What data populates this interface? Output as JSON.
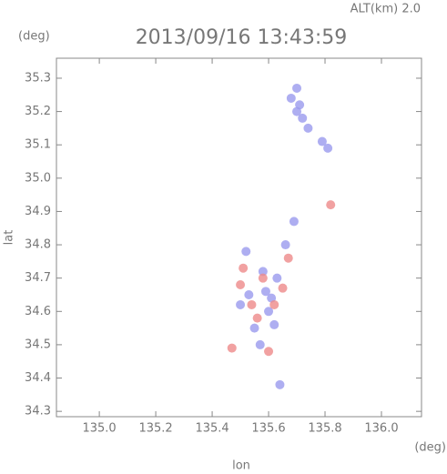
{
  "chart_data": {
    "type": "scatter",
    "title": "2013/09/16 13:43:59",
    "subtitle": "ALT(km) 2.0",
    "y_unit": "(deg)",
    "x_unit": "(deg)",
    "x_label": "lon",
    "y_label": "lat",
    "xlim": [
      134.848,
      136.142
    ],
    "ylim": [
      34.284,
      35.36
    ],
    "xticks": [
      {
        "value": 135,
        "label": "135.0"
      },
      135.2,
      135.4,
      135.6,
      135.8,
      {
        "value": 136,
        "label": "136.0"
      }
    ],
    "yticks": [
      34.3,
      34.4,
      34.5,
      34.6,
      34.7,
      34.8,
      34.9,
      {
        "value": 35,
        "label": "35.0"
      },
      35.1,
      35.2,
      35.3
    ],
    "series": [
      {
        "color": "#9a9aee",
        "x": [
          135.7,
          135.71,
          135.72,
          135.68,
          135.74,
          135.7,
          135.79,
          135.81,
          135.58,
          135.53,
          135.6,
          135.55,
          135.62,
          135.57,
          135.63,
          135.52,
          135.66,
          135.64,
          135.5,
          135.59,
          135.69,
          135.61
        ],
        "y": [
          35.27,
          35.22,
          35.18,
          35.24,
          35.15,
          35.2,
          35.11,
          35.09,
          34.72,
          34.65,
          34.6,
          34.55,
          34.56,
          34.5,
          34.7,
          34.78,
          34.8,
          34.38,
          34.62,
          34.66,
          34.87,
          34.64
        ]
      },
      {
        "color": "#ee8a8a",
        "x": [
          135.5,
          135.56,
          135.65,
          135.54,
          135.82,
          135.47,
          135.6,
          135.58,
          135.51,
          135.67,
          135.62
        ],
        "y": [
          34.68,
          34.58,
          34.67,
          34.62,
          34.92,
          34.49,
          34.48,
          34.7,
          34.73,
          34.76,
          34.62
        ]
      }
    ]
  }
}
